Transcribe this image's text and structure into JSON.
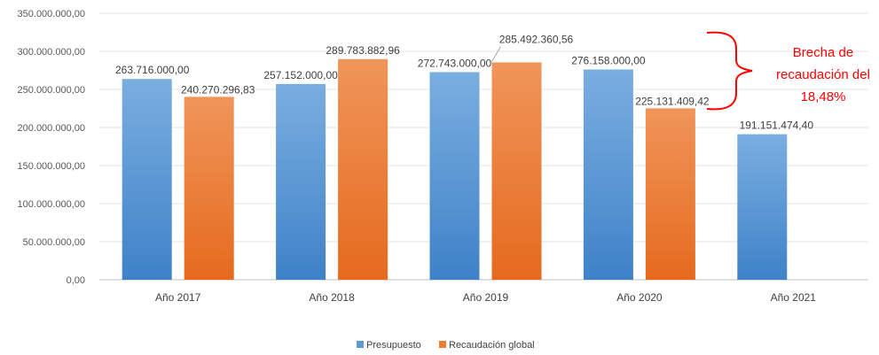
{
  "chart_data": {
    "type": "bar",
    "categories": [
      "Año 2017",
      "Año 2018",
      "Año 2019",
      "Año 2020",
      "Año 2021"
    ],
    "series": [
      {
        "name": "Presupuesto",
        "color": "#5b9bd5",
        "values": [
          263716000.0,
          257152000.0,
          272743000.0,
          276158000.0,
          191151474.4
        ],
        "labels": [
          "263.716.000,00",
          "257.152.000,00",
          "272.743.000,00",
          "276.158.000,00",
          "191.151.474,40"
        ]
      },
      {
        "name": "Recaudación global",
        "color": "#ed7d31",
        "values": [
          240270296.83,
          289783882.96,
          285492360.56,
          225131409.42,
          null
        ],
        "labels": [
          "240.270.296,83",
          "289.783.882,96",
          "285.492.360,56",
          "225.131.409,42",
          ""
        ]
      }
    ],
    "ylim": [
      0,
      350000000
    ],
    "ytick_labels": [
      "0,00",
      "50.000.000,00",
      "100.000.000,00",
      "150.000.000,00",
      "200.000.000,00",
      "250.000.000,00",
      "300.000.000,00",
      "350.000.000,00"
    ],
    "grid": true,
    "legend": "bottom",
    "annotation": {
      "lines": [
        "Brecha de",
        "recaudación del",
        "18,48%"
      ],
      "color": "#ff0000"
    }
  }
}
